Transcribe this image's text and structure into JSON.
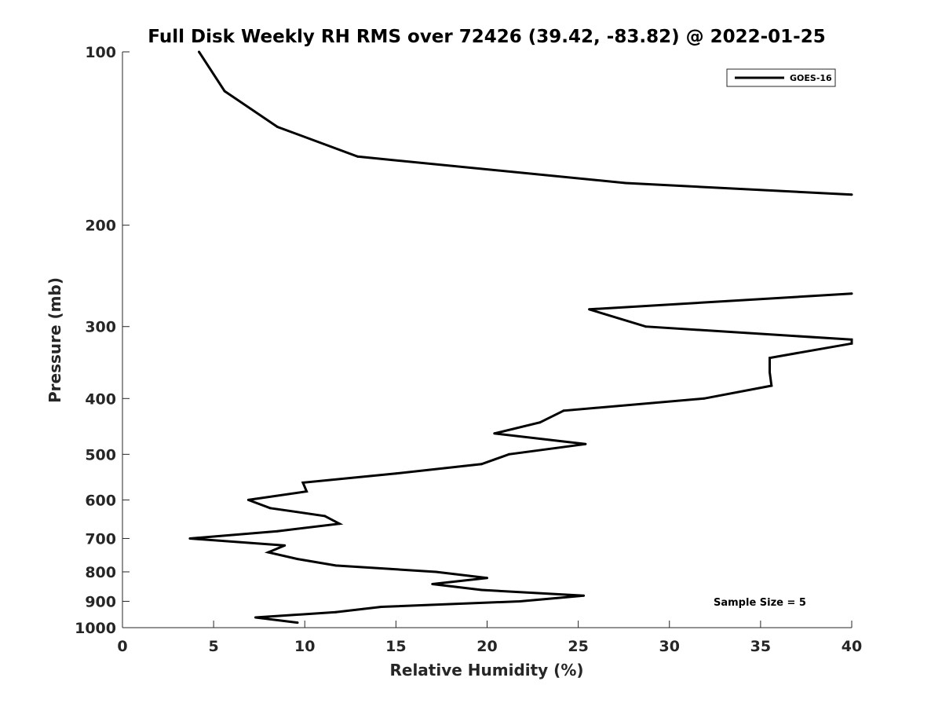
{
  "chart_data": {
    "type": "line",
    "title": "Full Disk Weekly RH RMS over 72426 (39.42, -83.82) @ 2022-01-25",
    "xlabel": "Relative Humidity (%)",
    "ylabel": "Pressure (mb)",
    "xlim": [
      0,
      40
    ],
    "ylim": [
      100,
      1000
    ],
    "y_scale": "log",
    "y_reversed": true,
    "grid": false,
    "xticks": [
      "0",
      "5",
      "10",
      "15",
      "20",
      "25",
      "30",
      "35",
      "40"
    ],
    "yticks": [
      "100",
      "200",
      "300",
      "400",
      "500",
      "600",
      "700",
      "800",
      "900",
      "1000"
    ],
    "legend": {
      "position": "top-right",
      "entries": [
        "GOES-16"
      ]
    },
    "annotation": "Sample Size = 5",
    "series": [
      {
        "name": "GOES-16",
        "color": "#000000",
        "segments": [
          [
            {
              "x": 4.2,
              "y": 100
            },
            {
              "x": 5.6,
              "y": 117
            },
            {
              "x": 8.5,
              "y": 135
            },
            {
              "x": 12.9,
              "y": 152
            },
            {
              "x": 27.6,
              "y": 169
            },
            {
              "x": 40.0,
              "y": 177
            }
          ],
          [
            {
              "x": 40.0,
              "y": 263
            },
            {
              "x": 25.6,
              "y": 280
            },
            {
              "x": 28.7,
              "y": 300
            },
            {
              "x": 40.0,
              "y": 316
            },
            {
              "x": 40.0,
              "y": 321
            },
            {
              "x": 35.5,
              "y": 340
            },
            {
              "x": 35.5,
              "y": 360
            },
            {
              "x": 35.6,
              "y": 380
            },
            {
              "x": 31.9,
              "y": 400
            },
            {
              "x": 24.2,
              "y": 420
            },
            {
              "x": 22.9,
              "y": 440
            },
            {
              "x": 20.4,
              "y": 460
            },
            {
              "x": 25.4,
              "y": 480
            },
            {
              "x": 21.2,
              "y": 500
            },
            {
              "x": 19.7,
              "y": 520
            },
            {
              "x": 15.0,
              "y": 540
            },
            {
              "x": 9.9,
              "y": 560
            },
            {
              "x": 10.1,
              "y": 580
            },
            {
              "x": 6.9,
              "y": 600
            },
            {
              "x": 8.1,
              "y": 620
            },
            {
              "x": 11.1,
              "y": 640
            },
            {
              "x": 11.9,
              "y": 660
            },
            {
              "x": 8.5,
              "y": 680
            },
            {
              "x": 3.7,
              "y": 700
            },
            {
              "x": 8.9,
              "y": 720
            },
            {
              "x": 8.0,
              "y": 740
            },
            {
              "x": 9.6,
              "y": 760
            },
            {
              "x": 11.7,
              "y": 780
            },
            {
              "x": 17.2,
              "y": 800
            },
            {
              "x": 20.0,
              "y": 820
            },
            {
              "x": 17.0,
              "y": 840
            },
            {
              "x": 19.7,
              "y": 860
            },
            {
              "x": 25.3,
              "y": 880
            },
            {
              "x": 21.8,
              "y": 900
            },
            {
              "x": 14.2,
              "y": 920
            },
            {
              "x": 11.7,
              "y": 940
            },
            {
              "x": 7.3,
              "y": 960
            },
            {
              "x": 9.6,
              "y": 980
            }
          ]
        ]
      }
    ]
  }
}
